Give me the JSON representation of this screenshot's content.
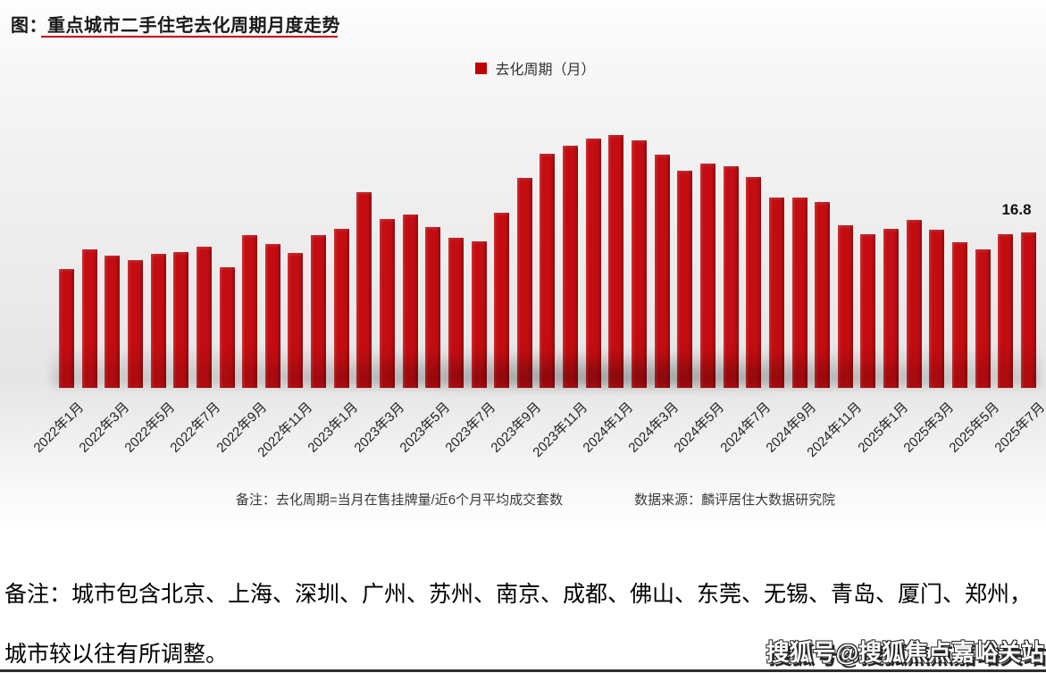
{
  "chart": {
    "title": "图：重点城市二手住宅去化周期月度走势",
    "legend_label": "去化周期（月）",
    "note_left": "备注：去化周期=当月在售挂牌量/近6个月平均成交套数",
    "note_right": "数据来源：麟评居住大数据研究院",
    "colors": {
      "bar": "#c30d12",
      "accent": "#c00000"
    }
  },
  "chart_data": {
    "type": "bar",
    "title": "重点城市二手住宅去化周期月度走势",
    "ylabel": "去化周期（月）",
    "xlabel": "",
    "legend": [
      "去化周期（月）"
    ],
    "legend_position": "top-center",
    "grid": false,
    "y_axis_visible": false,
    "ylim": [
      0,
      28.5
    ],
    "x_tick_step": 2,
    "categories": [
      "2022年1月",
      "2022年2月",
      "2022年3月",
      "2022年4月",
      "2022年5月",
      "2022年6月",
      "2022年7月",
      "2022年8月",
      "2022年9月",
      "2022年10月",
      "2022年11月",
      "2022年12月",
      "2023年1月",
      "2023年2月",
      "2023年3月",
      "2023年4月",
      "2023年5月",
      "2023年6月",
      "2023年7月",
      "2023年8月",
      "2023年9月",
      "2023年10月",
      "2023年11月",
      "2023年12月",
      "2024年1月",
      "2024年2月",
      "2024年3月",
      "2024年4月",
      "2024年5月",
      "2024年6月",
      "2024年7月",
      "2024年8月",
      "2024年9月",
      "2024年10月",
      "2024年11月",
      "2024年12月",
      "2025年1月",
      "2025年2月",
      "2025年3月",
      "2025年4月",
      "2025年5月",
      "2025年6月",
      "2025年7月"
    ],
    "values": [
      12.9,
      15.0,
      14.3,
      13.8,
      14.5,
      14.7,
      15.3,
      13.1,
      16.5,
      15.6,
      14.6,
      16.5,
      17.2,
      21.2,
      18.3,
      18.8,
      17.4,
      16.3,
      15.9,
      19.0,
      22.7,
      25.3,
      26.2,
      27.0,
      27.4,
      26.8,
      25.2,
      23.5,
      24.3,
      24.0,
      22.8,
      20.6,
      20.6,
      20.1,
      17.6,
      16.6,
      17.2,
      18.2,
      17.1,
      15.8,
      15.0,
      16.6,
      16.8
    ],
    "annotation": {
      "text": "16.8",
      "index": 42
    }
  },
  "footer": {
    "note_line1": "备注：城市包含北京、上海、深圳、广州、苏州、南京、成都、佛山、东莞、无锡、青岛、厦门、郑州，",
    "note_line2": "城市较以往有所调整。",
    "watermark": "搜狐号@搜狐焦点嘉峪关站"
  }
}
